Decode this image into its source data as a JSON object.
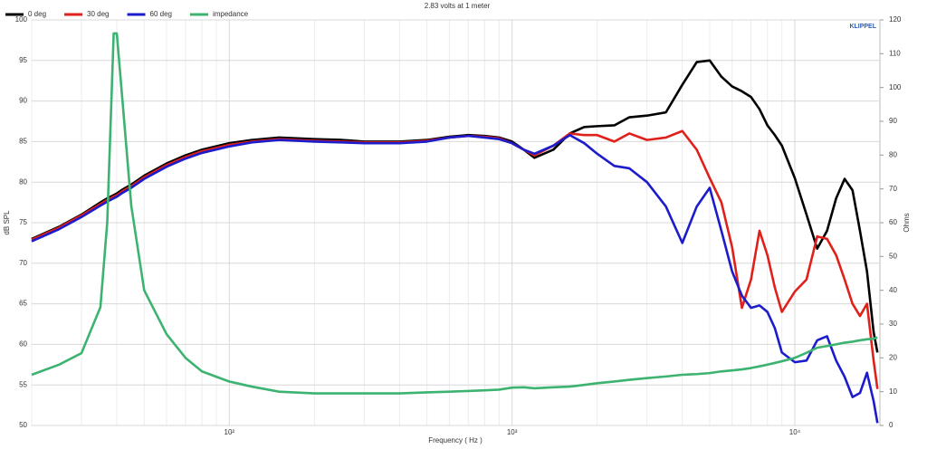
{
  "chart_data": {
    "type": "line",
    "subtitle": "2.83 volts at 1 meter",
    "brand": "KLIPPEL",
    "xlabel": "Frequency ( Hz )",
    "ylabel": "dB SPL",
    "y2label": "Ohms",
    "xscale": "log",
    "grid": true,
    "legend": "top-left",
    "xlim": [
      20,
      20000
    ],
    "xticks": [
      {
        "value": 100,
        "label": "10²"
      },
      {
        "value": 1000,
        "label": "10³"
      },
      {
        "value": 10000,
        "label": "10⁴"
      }
    ],
    "xminorticks": [
      20,
      30,
      40,
      50,
      60,
      70,
      80,
      90,
      200,
      300,
      400,
      500,
      600,
      700,
      800,
      900,
      2000,
      3000,
      4000,
      5000,
      6000,
      7000,
      8000,
      9000
    ],
    "ylim": [
      50,
      100
    ],
    "yticks": [
      50,
      55,
      60,
      65,
      70,
      75,
      80,
      85,
      90,
      95,
      100
    ],
    "y2lim": [
      0,
      120
    ],
    "y2ticks": [
      0,
      10,
      20,
      30,
      40,
      50,
      60,
      70,
      80,
      90,
      100,
      110,
      120
    ],
    "x": [
      20,
      25,
      30,
      35,
      37,
      39,
      40,
      42,
      45,
      50,
      60,
      70,
      80,
      100,
      120,
      150,
      200,
      250,
      300,
      400,
      500,
      600,
      700,
      800,
      900,
      1000,
      1100,
      1200,
      1400,
      1600,
      1800,
      2000,
      2300,
      2600,
      3000,
      3500,
      4000,
      4500,
      5000,
      5500,
      6000,
      6500,
      7000,
      7500,
      8000,
      8500,
      9000,
      10000,
      11000,
      12000,
      13000,
      14000,
      15000,
      16000,
      17000,
      18000,
      19000,
      19600
    ],
    "series": [
      {
        "name": "0 deg",
        "color": "#000000",
        "values": [
          73,
          74.5,
          76,
          77.5,
          78,
          78.4,
          78.6,
          79.1,
          79.7,
          80.8,
          82.3,
          83.3,
          84,
          84.8,
          85.2,
          85.5,
          85.3,
          85.2,
          85,
          85,
          85.2,
          85.6,
          85.8,
          85.7,
          85.5,
          85,
          84,
          83,
          84,
          86,
          86.8,
          86.9,
          87,
          88,
          88.2,
          88.6,
          92,
          94.8,
          95,
          93,
          91.8,
          91.2,
          90.5,
          89,
          87,
          85.8,
          84.5,
          80.5,
          76,
          71.8,
          74,
          78,
          80.4,
          79,
          74,
          69,
          61.5,
          59
        ]
      },
      {
        "name": "30 deg",
        "color": "#e0201a",
        "values": [
          72.9,
          74.4,
          75.9,
          77.3,
          77.8,
          78.2,
          78.4,
          78.9,
          79.5,
          80.6,
          82.1,
          83.1,
          83.8,
          84.6,
          85,
          85.3,
          85.1,
          85,
          84.9,
          84.9,
          85.1,
          85.5,
          85.7,
          85.6,
          85.4,
          84.8,
          84,
          83.3,
          84.5,
          86,
          85.8,
          85.8,
          85,
          86,
          85.2,
          85.5,
          86.3,
          84,
          80.5,
          77.5,
          72,
          64.5,
          68,
          74,
          71,
          67,
          64,
          66.5,
          68,
          73.3,
          73,
          71,
          68,
          65,
          63.5,
          65,
          58,
          54.5
        ]
      },
      {
        "name": "60 deg",
        "color": "#1c1ccc",
        "values": [
          72.7,
          74.2,
          75.7,
          77.1,
          77.6,
          78,
          78.2,
          78.7,
          79.3,
          80.4,
          81.9,
          82.9,
          83.6,
          84.4,
          84.9,
          85.2,
          85,
          84.9,
          84.8,
          84.8,
          85,
          85.5,
          85.7,
          85.5,
          85.3,
          84.8,
          84,
          83.5,
          84.5,
          85.8,
          84.8,
          83.5,
          82,
          81.7,
          80,
          77,
          72.5,
          77,
          79.3,
          74,
          69,
          66,
          64.5,
          64.8,
          64,
          62,
          59,
          57.8,
          58,
          60.5,
          61,
          58,
          56,
          53.5,
          54,
          56.5,
          53,
          50.3
        ]
      },
      {
        "name": "impedance",
        "color": "#3cb371",
        "axis": "y2",
        "values": [
          15,
          18,
          21.4,
          35,
          60,
          116,
          116,
          95,
          65,
          40,
          27,
          20,
          16,
          13,
          11.5,
          10,
          9.5,
          9.5,
          9.5,
          9.5,
          9.8,
          10,
          10.2,
          10.4,
          10.6,
          11.2,
          11.3,
          11,
          11.3,
          11.5,
          12,
          12.5,
          13,
          13.5,
          14,
          14.5,
          15,
          15.2,
          15.5,
          16,
          16.3,
          16.6,
          17,
          17.5,
          18,
          18.5,
          19,
          20,
          21.5,
          23,
          23.5,
          24,
          24.5,
          24.8,
          25.2,
          25.5,
          25.7,
          26
        ]
      }
    ]
  }
}
